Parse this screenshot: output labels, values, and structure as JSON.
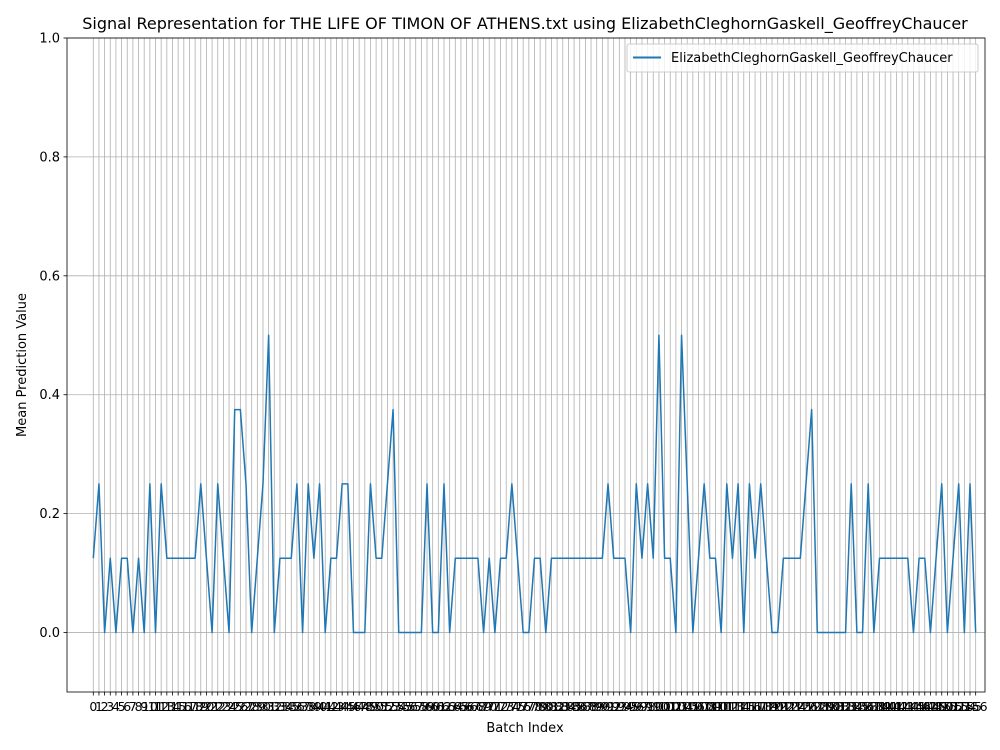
{
  "chart_data": {
    "type": "line",
    "title": "Signal Representation for THE LIFE OF TIMON OF ATHENS.txt using ElizabethCleghornGaskell_GeoffreyChaucer",
    "xlabel": "Batch Index",
    "ylabel": "Mean Prediction Value",
    "xlim": [
      -4.65,
      157.65
    ],
    "ylim": [
      -0.1,
      1.0
    ],
    "grid": true,
    "legend_position": "upper right",
    "yticks": [
      0.0,
      0.2,
      0.4,
      0.6,
      0.8,
      1.0
    ],
    "series": [
      {
        "name": "ElizabethCleghornGaskell_GeoffreyChaucer",
        "color": "#1f77b4",
        "values": [
          0.125,
          0.25,
          0,
          0.125,
          0,
          0.125,
          0.125,
          0,
          0.125,
          0,
          0.25,
          0,
          0.25,
          0.125,
          0.125,
          0.125,
          0.125,
          0.125,
          0.125,
          0.25,
          0.125,
          0,
          0.25,
          0.125,
          0,
          0.375,
          0.375,
          0.25,
          0,
          0.125,
          0.25,
          0.5,
          0,
          0.125,
          0.125,
          0.125,
          0.25,
          0,
          0.25,
          0.125,
          0.25,
          0,
          0.125,
          0.125,
          0.25,
          0.25,
          0,
          0,
          0,
          0.25,
          0.125,
          0.125,
          0.25,
          0.375,
          0,
          0,
          0,
          0,
          0,
          0.25,
          0,
          0,
          0.25,
          0,
          0.125,
          0.125,
          0.125,
          0.125,
          0.125,
          0,
          0.125,
          0,
          0.125,
          0.125,
          0.25,
          0.125,
          0,
          0,
          0.125,
          0.125,
          0,
          0.125,
          0.125,
          0.125,
          0.125,
          0.125,
          0.125,
          0.125,
          0.125,
          0.125,
          0.125,
          0.25,
          0.125,
          0.125,
          0.125,
          0,
          0.25,
          0.125,
          0.25,
          0.125,
          0.5,
          0.125,
          0.125,
          0,
          0.5,
          0.25,
          0,
          0.125,
          0.25,
          0.125,
          0.125,
          0,
          0.25,
          0.125,
          0.25,
          0,
          0.25,
          0.125,
          0.25,
          0.125,
          0,
          0,
          0.125,
          0.125,
          0.125,
          0.125,
          0.25,
          0.375,
          0,
          0,
          0,
          0,
          0,
          0,
          0.25,
          0,
          0,
          0.25,
          0,
          0.125,
          0.125,
          0.125,
          0.125,
          0.125,
          0.125,
          0,
          0.125,
          0.125,
          0,
          0.125,
          0.25,
          0,
          0.125,
          0.25,
          0,
          0.25,
          0
        ]
      }
    ]
  }
}
